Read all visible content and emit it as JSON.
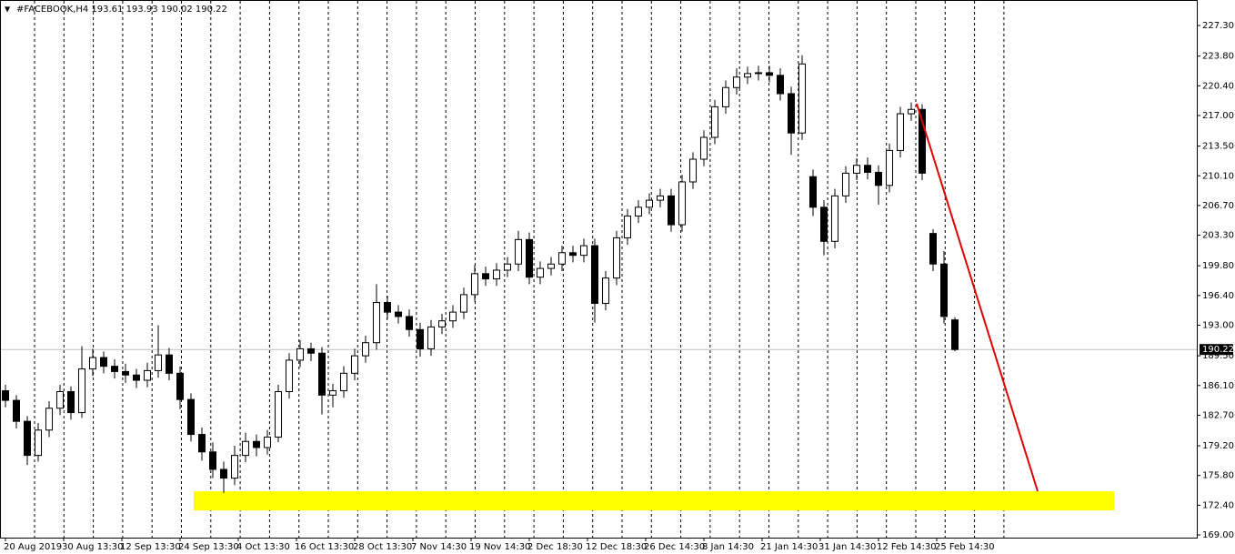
{
  "chart_data": {
    "type": "candlestick",
    "title": "#FACEBOOK,H4  193.61 193.93 190.02 190.22",
    "ylim": [
      168.69,
      230.22
    ],
    "yticks": [
      {
        "value": 227.3,
        "label": "227.30"
      },
      {
        "value": 223.8,
        "label": "223.80"
      },
      {
        "value": 220.4,
        "label": "220.40"
      },
      {
        "value": 217,
        "label": "217.00"
      },
      {
        "value": 213.5,
        "label": "213.50"
      },
      {
        "value": 210.1,
        "label": "210.10"
      },
      {
        "value": 206.7,
        "label": "206.70"
      },
      {
        "value": 203.3,
        "label": "203.30"
      },
      {
        "value": 199.8,
        "label": "199.80"
      },
      {
        "value": 196.4,
        "label": "196.40"
      },
      {
        "value": 193,
        "label": "193.00"
      },
      {
        "value": 189.5,
        "label": "189.50"
      },
      {
        "value": 186.1,
        "label": "186.10"
      },
      {
        "value": 182.7,
        "label": "182.70"
      },
      {
        "value": 179.2,
        "label": "179.20"
      },
      {
        "value": 175.8,
        "label": "175.80"
      },
      {
        "value": 172.4,
        "label": "172.40"
      },
      {
        "value": 169,
        "label": "169.00"
      }
    ],
    "xticks": [
      "20 Aug 2019",
      "30 Aug 13:30",
      "12 Sep 13:30",
      "24 Sep 13:30",
      "4 Oct 13:30",
      "16 Oct 13:30",
      "28 Oct 13:30",
      "7 Nov 14:30",
      "19 Nov 14:30",
      "2 Dec 18:30",
      "12 Dec 18:30",
      "26 Dec 14:30",
      "8 Jan 14:30",
      "21 Jan 14:30",
      "31 Jan 14:30",
      "12 Feb 14:30",
      "25 Feb 14:30"
    ],
    "current_price": 190.22,
    "up_color": "#ffffff",
    "down_color": "#000000",
    "open": [
      185.5,
      184.4,
      182.0,
      178.1,
      181.0,
      183.5,
      185.4,
      183.0,
      188.0,
      189.3,
      188.3,
      187.7,
      187.3,
      186.7,
      187.8,
      189.6,
      187.5,
      184.5,
      180.5,
      178.5,
      176.5,
      175.5,
      178.1,
      179.7,
      179.0,
      180.2,
      185.4,
      189.0,
      190.3,
      189.8,
      185.0,
      185.5,
      187.5,
      189.5,
      191.0,
      195.6,
      194.5,
      194.0,
      192.5,
      190.3,
      192.8,
      193.5,
      194.5,
      196.5,
      198.9,
      198.3,
      199.3,
      200.0,
      202.8,
      198.5,
      199.5,
      200.0,
      201.3,
      201.0,
      202.1,
      195.5,
      198.4,
      203.0,
      205.5,
      206.5,
      207.3,
      207.8,
      204.5,
      209.4,
      212.0,
      214.5,
      218.0,
      220.2,
      221.4,
      221.8,
      221.9,
      221.6,
      219.5,
      215.0,
      210.0,
      206.5,
      202.6,
      207.8,
      210.4,
      211.3,
      210.5,
      209.0,
      213.0,
      217.2,
      217.7,
      203.5,
      200.0,
      193.61
    ],
    "high": [
      186.2,
      185.0,
      182.6,
      181.8,
      184.3,
      186.2,
      186.0,
      190.6,
      190.3,
      190.0,
      189.1,
      188.6,
      188.0,
      188.7,
      193.0,
      190.4,
      188.3,
      185.2,
      181.3,
      179.6,
      177.4,
      179.2,
      180.7,
      180.5,
      181.0,
      186.2,
      189.8,
      191.3,
      191.0,
      190.5,
      186.3,
      188.3,
      190.3,
      191.8,
      197.7,
      196.4,
      195.3,
      194.8,
      193.3,
      193.6,
      194.3,
      195.3,
      197.3,
      199.9,
      199.7,
      200.1,
      200.8,
      203.8,
      203.6,
      200.3,
      200.8,
      202.1,
      202.1,
      202.9,
      202.9,
      199.2,
      203.8,
      206.3,
      207.3,
      208.1,
      208.6,
      208.6,
      210.2,
      212.8,
      215.3,
      218.8,
      221.0,
      222.4,
      222.6,
      222.7,
      222.7,
      222.4,
      220.3,
      223.9,
      210.8,
      207.3,
      208.6,
      211.2,
      212.1,
      212.2,
      211.3,
      213.8,
      218.0,
      218.5,
      218.3,
      204.0,
      201.5,
      193.93
    ],
    "low": [
      183.6,
      181.2,
      177.0,
      177.4,
      180.2,
      182.7,
      182.2,
      182.4,
      187.2,
      187.5,
      186.9,
      186.4,
      185.8,
      185.9,
      187.0,
      186.7,
      183.4,
      179.7,
      177.5,
      175.5,
      173.8,
      174.7,
      177.3,
      178.0,
      178.2,
      179.6,
      184.6,
      188.2,
      188.9,
      182.8,
      183.6,
      184.7,
      186.7,
      188.7,
      190.2,
      193.7,
      193.2,
      191.7,
      189.4,
      189.5,
      192.0,
      192.7,
      193.7,
      195.7,
      197.5,
      197.5,
      198.5,
      199.2,
      197.7,
      197.7,
      198.7,
      199.2,
      200.2,
      200.2,
      193.3,
      194.7,
      197.6,
      202.2,
      204.7,
      205.7,
      206.5,
      203.7,
      203.7,
      208.6,
      211.2,
      213.7,
      217.2,
      219.4,
      220.6,
      221.0,
      220.8,
      218.7,
      212.5,
      214.2,
      205.5,
      201.0,
      201.8,
      207.0,
      209.6,
      209.7,
      206.8,
      208.2,
      212.2,
      216.4,
      209.6,
      199.2,
      193.2,
      190.02
    ],
    "close": [
      184.4,
      182.0,
      178.1,
      181.0,
      183.5,
      185.4,
      183.0,
      188.0,
      189.3,
      188.3,
      187.7,
      187.3,
      186.7,
      187.8,
      189.6,
      187.5,
      184.5,
      180.5,
      178.5,
      176.5,
      175.5,
      178.1,
      179.7,
      179.0,
      180.2,
      185.4,
      189.0,
      190.3,
      189.8,
      185.0,
      185.5,
      187.5,
      189.5,
      191.0,
      195.6,
      194.5,
      194.0,
      192.5,
      190.3,
      192.8,
      193.5,
      194.5,
      196.5,
      198.9,
      198.3,
      199.3,
      200.0,
      202.8,
      198.5,
      199.5,
      200.0,
      201.3,
      201.0,
      202.1,
      195.5,
      198.4,
      203.0,
      205.5,
      206.5,
      207.3,
      207.8,
      204.5,
      209.4,
      212.0,
      214.5,
      218.0,
      220.2,
      221.4,
      221.8,
      221.9,
      221.6,
      219.5,
      215.0,
      222.9,
      206.5,
      202.6,
      207.8,
      210.4,
      211.3,
      210.5,
      209.0,
      213.0,
      217.2,
      217.7,
      210.4,
      200.0,
      194.0,
      190.22
    ],
    "trendline": {
      "color": "#e00000",
      "y": [
        218.35,
        174.0
      ]
    },
    "support_zone": {
      "color": "#ffff00",
      "range": [
        171.8,
        174.0
      ]
    }
  }
}
